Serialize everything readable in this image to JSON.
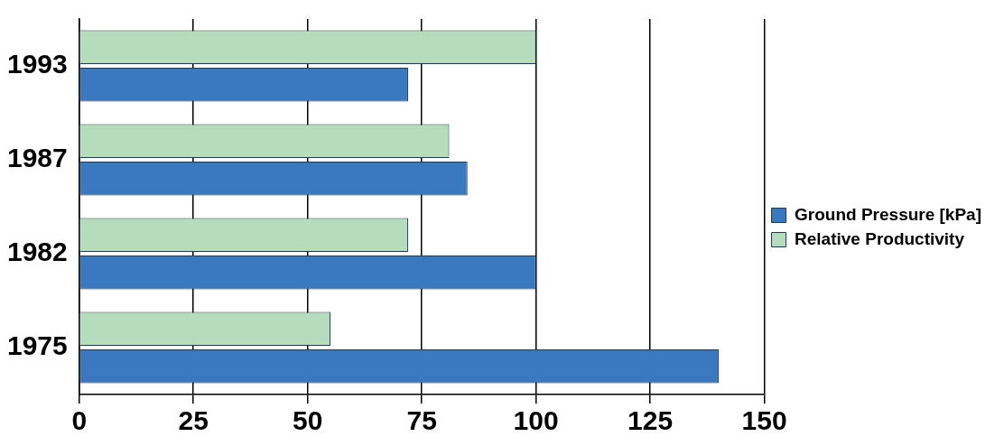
{
  "chart_data": {
    "type": "bar",
    "orientation": "horizontal",
    "categories": [
      "1993",
      "1987",
      "1982",
      "1975"
    ],
    "series": [
      {
        "name": "Ground Pressure [kPa]",
        "color": "#3a78c0",
        "values": [
          72,
          85,
          100,
          140
        ]
      },
      {
        "name": "Relative Productivity",
        "color": "#b5dcbc",
        "values": [
          100,
          81,
          72,
          55
        ]
      }
    ],
    "xlim": [
      0,
      150
    ],
    "xticks": [
      0,
      25,
      50,
      75,
      100,
      125,
      150
    ],
    "grid": "x",
    "legend": "right"
  }
}
